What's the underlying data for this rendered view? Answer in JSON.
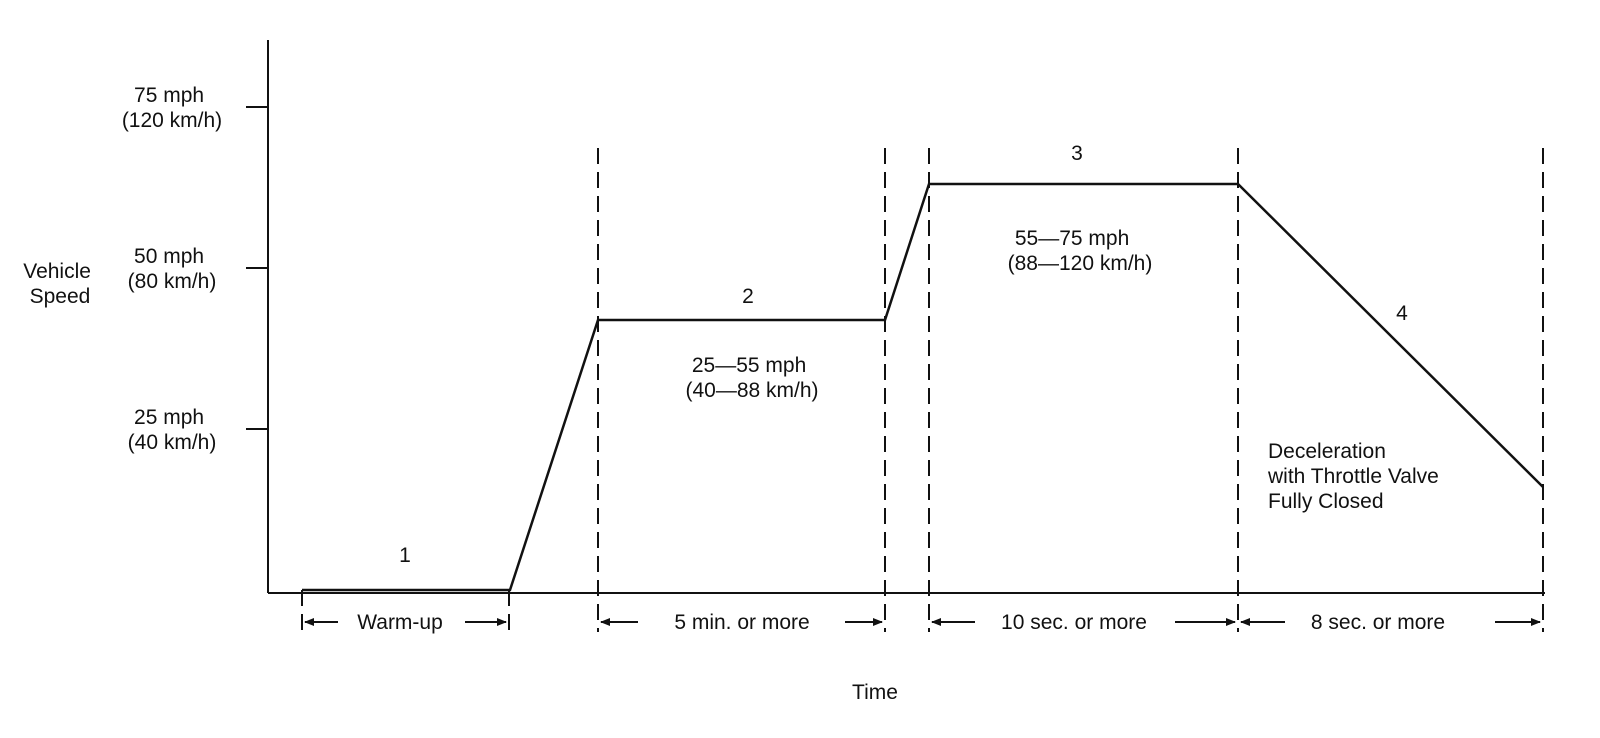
{
  "axes": {
    "y_label_line1": "Vehicle",
    "y_label_line2": "Speed",
    "x_label": "Time"
  },
  "y_ticks": [
    {
      "line1": "75 mph",
      "line2": "(120 km/h)"
    },
    {
      "line1": "50 mph",
      "line2": "(80 km/h)"
    },
    {
      "line1": "25 mph",
      "line2": "(40 km/h)"
    }
  ],
  "phases": [
    {
      "number": "1",
      "duration": "Warm-up"
    },
    {
      "number": "2",
      "duration": "5 min. or more",
      "range_line1": "25—55 mph",
      "range_line2": "(40—88 km/h)"
    },
    {
      "number": "3",
      "duration": "10 sec. or more",
      "range_line1": "55—75 mph",
      "range_line2": "(88—120 km/h)"
    },
    {
      "number": "4",
      "duration": "8 sec. or more",
      "note_line1": "Deceleration",
      "note_line2": "with Throttle Valve",
      "note_line3": "Fully Closed"
    }
  ],
  "colors": {
    "line": "#111111",
    "background": "#ffffff"
  }
}
